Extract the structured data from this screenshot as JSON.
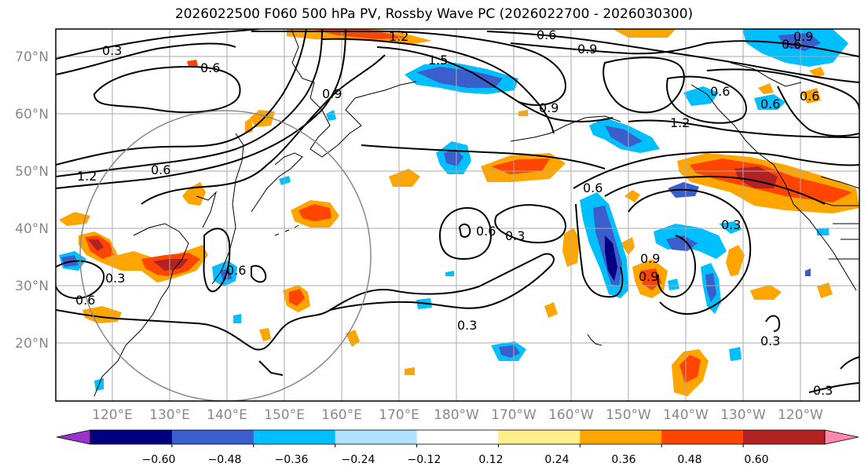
{
  "title": "2026022500 F060 500 hPa PV, Rossby Wave PC (2026022700 - 2026030300)",
  "latitude_labels": [
    "70°N",
    "60°N",
    "50°N",
    "40°N",
    "30°N",
    "20°N"
  ],
  "longitude_labels": [
    "120°E",
    "130°E",
    "140°E",
    "150°E",
    "160°E",
    "170°E",
    "180°W",
    "170°W",
    "160°W",
    "150°W",
    "140°W",
    "130°W",
    "120°W"
  ],
  "colorbar": {
    "tick_labels": [
      "−0.60",
      "−0.48",
      "−0.36",
      "−0.24",
      "−0.12",
      "0.12",
      "0.24",
      "0.36",
      "0.48",
      "0.60"
    ],
    "colors": [
      "#9933cc",
      "#000080",
      "#3a5fcd",
      "#00bfff",
      "#b0e2ff",
      "#ffffff",
      "#ffec8b",
      "#ffa500",
      "#ff4500",
      "#b22222",
      "#ff88aa"
    ]
  },
  "contour_labels": [
    "1.2",
    "0.6",
    "0.9",
    "0.6",
    "1.5",
    "0.6",
    "0.9",
    "0.9",
    "0.6",
    "0.6",
    "1.2",
    "0.9",
    "0.6",
    "1.2",
    "0.6",
    "0.6",
    "0.3",
    "0.9",
    "0.3",
    "0.3",
    "0.6",
    "0.3",
    "0.3",
    "0.6",
    "0.9",
    "0.3",
    "0.6",
    "0.3"
  ],
  "map_features": [
    "latitude-longitude-grid",
    "coastlines",
    "pv-contours",
    "rossby-wave-pc-shading",
    "reference-circle"
  ]
}
